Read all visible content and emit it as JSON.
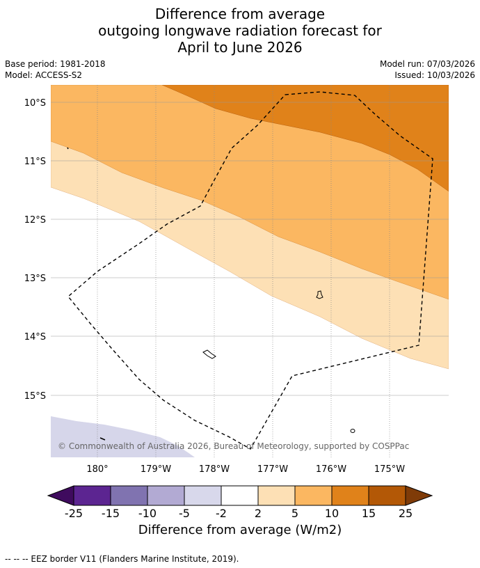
{
  "title": {
    "line1": "Difference from average",
    "line2": "outgoing longwave radiation forecast for",
    "line3": "April to June 2026"
  },
  "meta": {
    "base_period": "Base period: 1981-2018",
    "model": "Model: ACCESS-S2",
    "model_run": "Model run: 07/03/2026",
    "issued": "Issued: 10/03/2026"
  },
  "map": {
    "lat_labels": [
      "10°S",
      "11°S",
      "12°S",
      "13°S",
      "14°S",
      "15°S"
    ],
    "lon_labels": [
      "180°",
      "179°W",
      "178°W",
      "177°W",
      "176°W",
      "175°W"
    ],
    "copyright": "© Commonwealth of Australia 2026, Bureau of Meteorology, supported by COSPPac",
    "colors": {
      "band_5_10": "#fbb761",
      "band_10_15": "#e0821a",
      "band_2_5": "#fde0b5",
      "band_neg5_neg2": "#d6d6ea"
    }
  },
  "colorbar": {
    "ticks": [
      "-25",
      "-15",
      "-10",
      "-5",
      "-2",
      "2",
      "5",
      "10",
      "15",
      "25"
    ],
    "colors": [
      "#3f0b5e",
      "#5c2591",
      "#8073b0",
      "#b2aad3",
      "#d8d8eb",
      "#ffffff",
      "#fde0b5",
      "#fbb761",
      "#e0821a",
      "#b35806",
      "#7f3b08"
    ],
    "title": "Difference from average (W/m2)"
  },
  "footnote": "--  --  -- EEZ border V11 (Flanders Marine Institute, 2019)."
}
